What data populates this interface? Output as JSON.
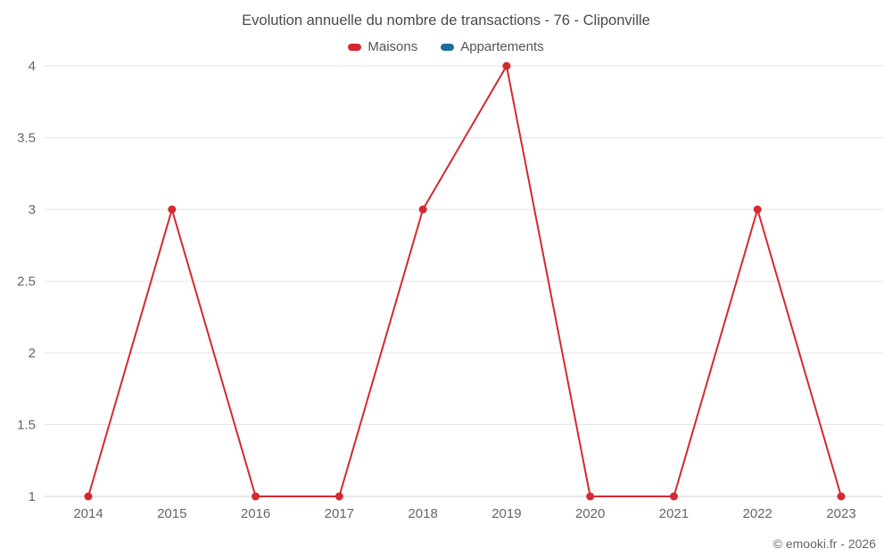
{
  "chart_data": {
    "type": "line",
    "title": "Evolution annuelle du nombre de transactions - 76 - Cliponville",
    "categories": [
      "2014",
      "2015",
      "2016",
      "2017",
      "2018",
      "2019",
      "2020",
      "2021",
      "2022",
      "2023"
    ],
    "series": [
      {
        "name": "Maisons",
        "color": "#d4292f",
        "values": [
          1,
          3,
          1,
          1,
          3,
          4,
          1,
          1,
          3,
          1
        ]
      },
      {
        "name": "Appartements",
        "color": "#1b6e99",
        "values": []
      }
    ],
    "xlabel": "",
    "ylabel": "",
    "ylim": [
      1,
      4
    ],
    "yticks": [
      1,
      1.5,
      2,
      2.5,
      3,
      3.5,
      4
    ],
    "grid": true,
    "legend_position": "top"
  },
  "colors": {
    "grid_line": "#e6e6e6",
    "axis_line": "#d0d0d0",
    "tick_label": "#666666",
    "title_text": "#4a4a4a",
    "legend_text": "#555555"
  },
  "footer": {
    "credit": "© emooki.fr - 2026"
  }
}
